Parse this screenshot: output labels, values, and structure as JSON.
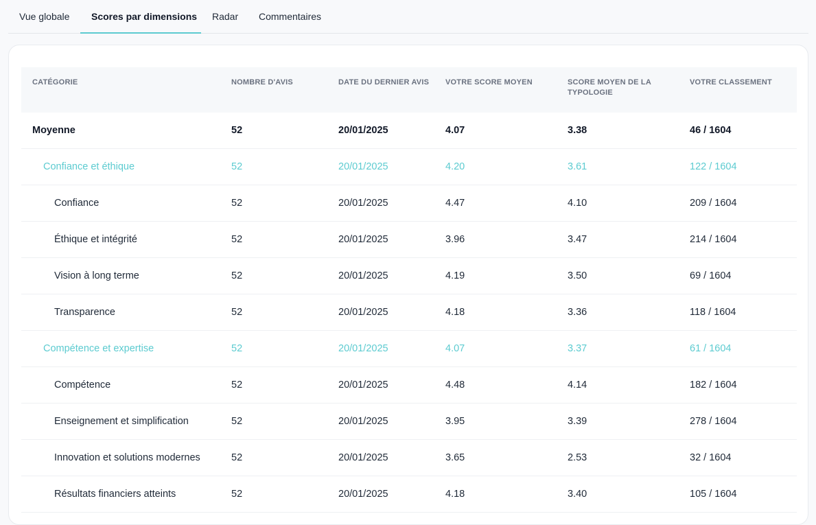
{
  "tabs": [
    {
      "label": "Vue globale",
      "active": false
    },
    {
      "label": "Scores par dimensions",
      "active": true
    },
    {
      "label": "Radar",
      "active": false
    },
    {
      "label": "Commentaires",
      "active": false
    }
  ],
  "table": {
    "headers": [
      "CATÉGORIE",
      "NOMBRE D'AVIS",
      "DATE DU DERNIER AVIS",
      "VOTRE SCORE MOYEN",
      "SCORE MOYEN DE LA TYPOLOGIE",
      "VOTRE CLASSEMENT"
    ],
    "rows": [
      {
        "level": "avg",
        "cells": [
          "Moyenne",
          "52",
          "20/01/2025",
          "4.07",
          "3.38",
          "46 / 1604"
        ]
      },
      {
        "level": "group",
        "cells": [
          "Confiance et éthique",
          "52",
          "20/01/2025",
          "4.20",
          "3.61",
          "122 / 1604"
        ]
      },
      {
        "level": "item",
        "cells": [
          "Confiance",
          "52",
          "20/01/2025",
          "4.47",
          "4.10",
          "209 / 1604"
        ]
      },
      {
        "level": "item",
        "cells": [
          "Éthique et intégrité",
          "52",
          "20/01/2025",
          "3.96",
          "3.47",
          "214 / 1604"
        ]
      },
      {
        "level": "item",
        "cells": [
          "Vision à long terme",
          "52",
          "20/01/2025",
          "4.19",
          "3.50",
          "69 / 1604"
        ]
      },
      {
        "level": "item",
        "cells": [
          "Transparence",
          "52",
          "20/01/2025",
          "4.18",
          "3.36",
          "118 / 1604"
        ]
      },
      {
        "level": "group",
        "cells": [
          "Compétence et expertise",
          "52",
          "20/01/2025",
          "4.07",
          "3.37",
          "61 / 1604"
        ]
      },
      {
        "level": "item",
        "cells": [
          "Compétence",
          "52",
          "20/01/2025",
          "4.48",
          "4.14",
          "182 / 1604"
        ]
      },
      {
        "level": "item",
        "cells": [
          "Enseignement et simplification",
          "52",
          "20/01/2025",
          "3.95",
          "3.39",
          "278 / 1604"
        ]
      },
      {
        "level": "item",
        "cells": [
          "Innovation et solutions modernes",
          "52",
          "20/01/2025",
          "3.65",
          "2.53",
          "32 / 1604"
        ]
      },
      {
        "level": "item",
        "cells": [
          "Résultats financiers atteints",
          "52",
          "20/01/2025",
          "4.18",
          "3.40",
          "105 / 1604"
        ]
      }
    ]
  },
  "colors": {
    "accent": "#5ccbd0"
  }
}
